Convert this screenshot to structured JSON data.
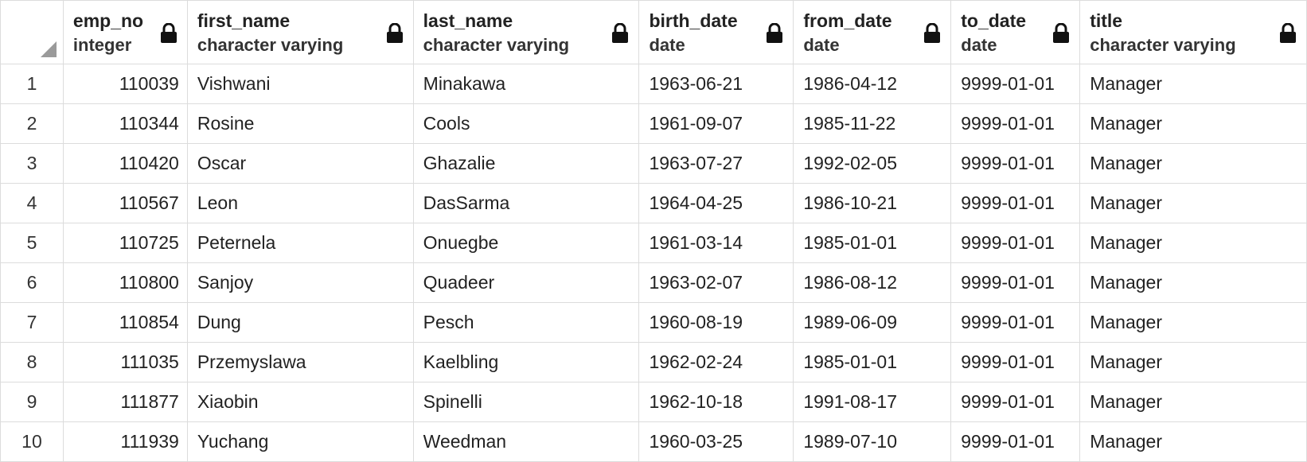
{
  "columns": [
    {
      "name": "emp_no",
      "type": "integer"
    },
    {
      "name": "first_name",
      "type": "character varying"
    },
    {
      "name": "last_name",
      "type": "character varying"
    },
    {
      "name": "birth_date",
      "type": "date"
    },
    {
      "name": "from_date",
      "type": "date"
    },
    {
      "name": "to_date",
      "type": "date"
    },
    {
      "name": "title",
      "type": "character varying"
    }
  ],
  "icons": {
    "column_lock": "lock-icon",
    "corner": "select-all-corner"
  },
  "rows": [
    {
      "n": "1",
      "cells": [
        "110039",
        "Vishwani",
        "Minakawa",
        "1963-06-21",
        "1986-04-12",
        "9999-01-01",
        "Manager"
      ]
    },
    {
      "n": "2",
      "cells": [
        "110344",
        "Rosine",
        "Cools",
        "1961-09-07",
        "1985-11-22",
        "9999-01-01",
        "Manager"
      ]
    },
    {
      "n": "3",
      "cells": [
        "110420",
        "Oscar",
        "Ghazalie",
        "1963-07-27",
        "1992-02-05",
        "9999-01-01",
        "Manager"
      ]
    },
    {
      "n": "4",
      "cells": [
        "110567",
        "Leon",
        "DasSarma",
        "1964-04-25",
        "1986-10-21",
        "9999-01-01",
        "Manager"
      ]
    },
    {
      "n": "5",
      "cells": [
        "110725",
        "Peternela",
        "Onuegbe",
        "1961-03-14",
        "1985-01-01",
        "9999-01-01",
        "Manager"
      ]
    },
    {
      "n": "6",
      "cells": [
        "110800",
        "Sanjoy",
        "Quadeer",
        "1963-02-07",
        "1986-08-12",
        "9999-01-01",
        "Manager"
      ]
    },
    {
      "n": "7",
      "cells": [
        "110854",
        "Dung",
        "Pesch",
        "1960-08-19",
        "1989-06-09",
        "9999-01-01",
        "Manager"
      ]
    },
    {
      "n": "8",
      "cells": [
        "111035",
        "Przemyslawa",
        "Kaelbling",
        "1962-02-24",
        "1985-01-01",
        "9999-01-01",
        "Manager"
      ]
    },
    {
      "n": "9",
      "cells": [
        "111877",
        "Xiaobin",
        "Spinelli",
        "1962-10-18",
        "1991-08-17",
        "9999-01-01",
        "Manager"
      ]
    },
    {
      "n": "10",
      "cells": [
        "111939",
        "Yuchang",
        "Weedman",
        "1960-03-25",
        "1989-07-10",
        "9999-01-01",
        "Manager"
      ]
    }
  ]
}
